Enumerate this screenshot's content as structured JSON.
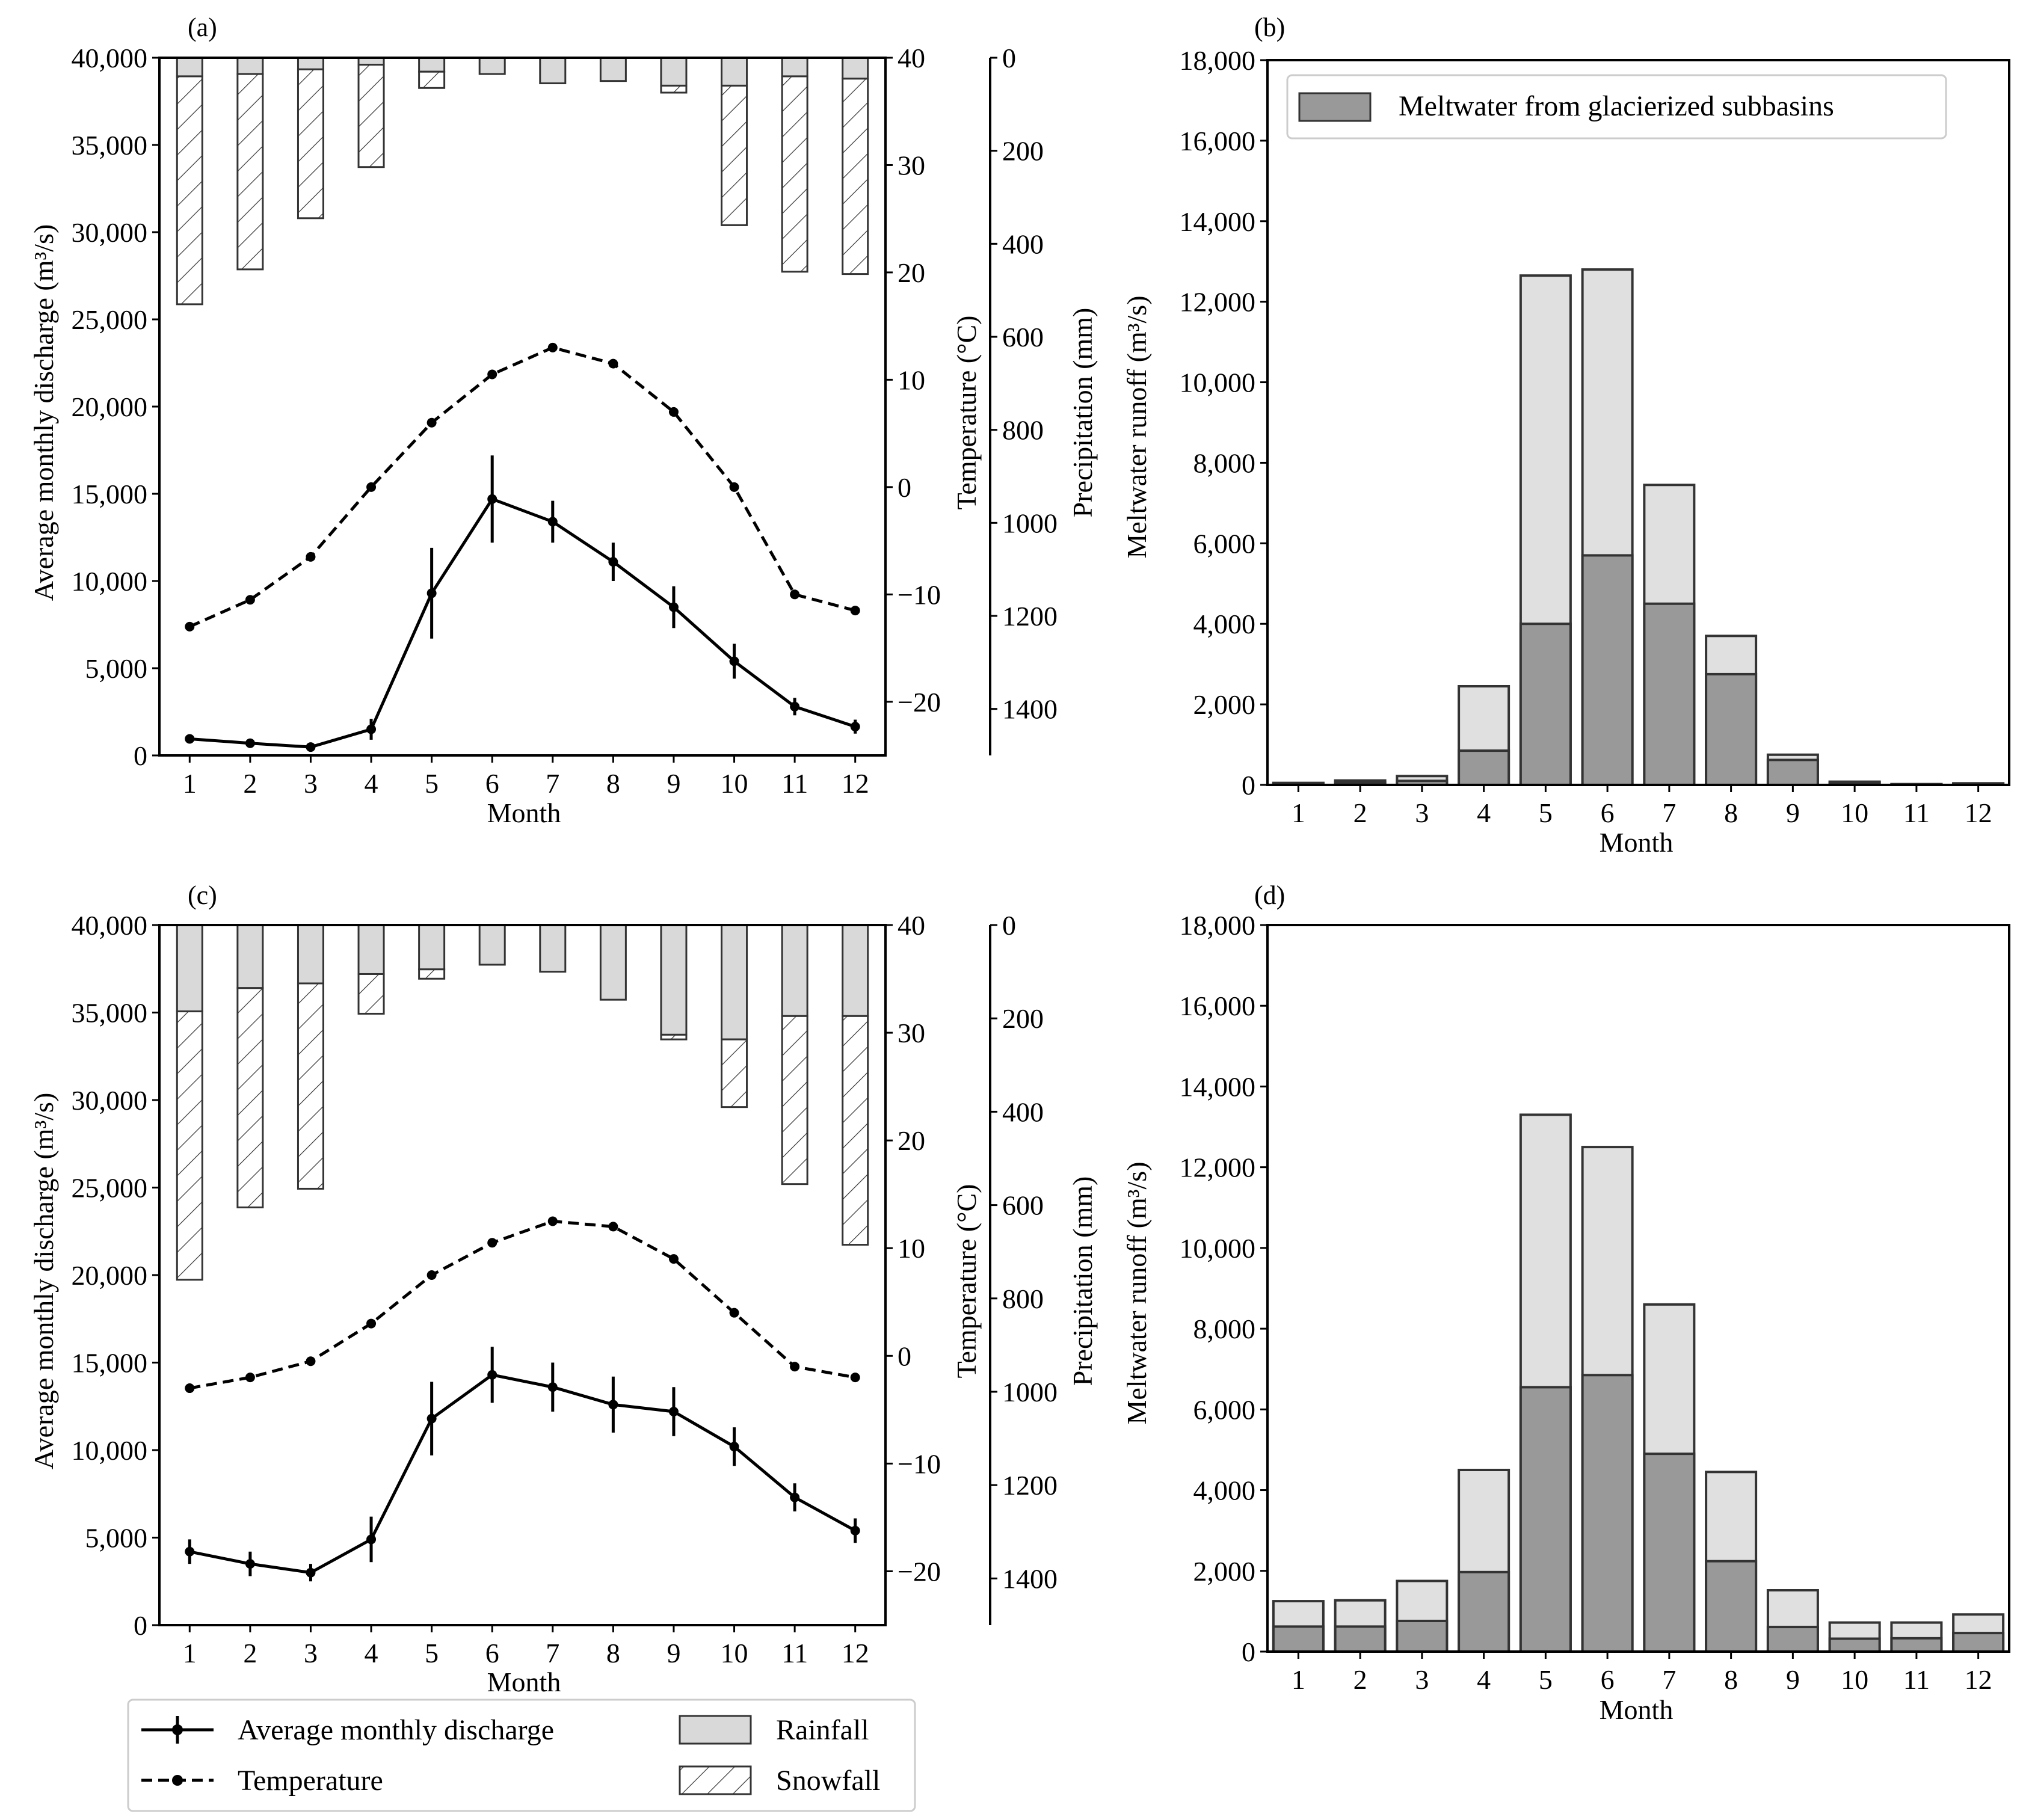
{
  "colors": {
    "rain": "#d9d9d9",
    "melt_total": "#e0e0e0",
    "melt_glacier": "#999999",
    "edge": "#333333",
    "line": "#000000",
    "background": "#ffffff"
  },
  "legend_bottom": {
    "discharge": "Average monthly discharge",
    "temperature": "Temperature",
    "rainfall": "Rainfall",
    "snowfall": "Snowfall"
  },
  "chart_data": [
    {
      "panel": "(a)",
      "type": "bar+line",
      "title": "",
      "xlabel": "Month",
      "ylabel_left": "Average monthly discharge (m³/s)",
      "ylabel_temp": "Temperature (°C)",
      "ylabel_precip": "Precipitation (mm)",
      "categories": [
        "1",
        "2",
        "3",
        "4",
        "5",
        "6",
        "7",
        "8",
        "9",
        "10",
        "11",
        "12"
      ],
      "discharge_ylim": [
        0,
        40000
      ],
      "discharge_ticks": [
        "0",
        "5,000",
        "10,000",
        "15,000",
        "20,000",
        "25,000",
        "30,000",
        "35,000",
        "40,000"
      ],
      "temp_ylim": [
        -25,
        40
      ],
      "temp_ticks": [
        "−20",
        "−10",
        "0",
        "10",
        "20",
        "30",
        "40"
      ],
      "precip_ylim": [
        1500,
        0
      ],
      "precip_ticks": [
        "0",
        "200",
        "400",
        "600",
        "800",
        "1000",
        "1200",
        "1400"
      ],
      "discharge": [
        950,
        700,
        480,
        1500,
        9300,
        14700,
        13400,
        11100,
        8500,
        5400,
        2800,
        1650
      ],
      "discharge_err": [
        0,
        0,
        0,
        600,
        2600,
        2500,
        1200,
        1100,
        1200,
        1000,
        500,
        400
      ],
      "temperature": [
        -13,
        -10.5,
        -6.5,
        0,
        6,
        10.5,
        13,
        11.5,
        7,
        0,
        -10,
        -11.5
      ],
      "rainfall": [
        40,
        35,
        25,
        15,
        30,
        35,
        55,
        50,
        60,
        60,
        40,
        45
      ],
      "snowfall": [
        490,
        420,
        320,
        220,
        35,
        0,
        0,
        0,
        15,
        300,
        420,
        420
      ]
    },
    {
      "panel": "(b)",
      "type": "bar",
      "title": "",
      "xlabel": "Month",
      "ylabel": "Meltwater runoff (m³/s)",
      "categories": [
        "1",
        "2",
        "3",
        "4",
        "5",
        "6",
        "7",
        "8",
        "9",
        "10",
        "11",
        "12"
      ],
      "ylim": [
        0,
        18000
      ],
      "yticks": [
        "0",
        "2,000",
        "4,000",
        "6,000",
        "8,000",
        "10,000",
        "12,000",
        "14,000",
        "16,000",
        "18,000"
      ],
      "legend": "Meltwater from glacierized subbasins",
      "total": [
        50,
        110,
        220,
        2450,
        12650,
        12800,
        7450,
        3700,
        750,
        80,
        20,
        40
      ],
      "glacierized": [
        30,
        60,
        100,
        850,
        4000,
        5700,
        4500,
        2750,
        620,
        50,
        10,
        25
      ]
    },
    {
      "panel": "(c)",
      "type": "bar+line",
      "title": "",
      "xlabel": "Month",
      "ylabel_left": "Average monthly discharge (m³/s)",
      "ylabel_temp": "Temperature (°C)",
      "ylabel_precip": "Precipitation (mm)",
      "categories": [
        "1",
        "2",
        "3",
        "4",
        "5",
        "6",
        "7",
        "8",
        "9",
        "10",
        "11",
        "12"
      ],
      "discharge_ylim": [
        0,
        40000
      ],
      "discharge_ticks": [
        "0",
        "5,000",
        "10,000",
        "15,000",
        "20,000",
        "25,000",
        "30,000",
        "35,000",
        "40,000"
      ],
      "temp_ylim": [
        -25,
        40
      ],
      "temp_ticks": [
        "−20",
        "−10",
        "0",
        "10",
        "20",
        "30",
        "40"
      ],
      "precip_ylim": [
        1500,
        0
      ],
      "precip_ticks": [
        "0",
        "200",
        "400",
        "600",
        "800",
        "1000",
        "1200",
        "1400"
      ],
      "discharge": [
        4200,
        3500,
        3000,
        4900,
        11800,
        14300,
        13600,
        12600,
        12200,
        10200,
        7300,
        5400
      ],
      "discharge_err": [
        700,
        700,
        500,
        1300,
        2100,
        1600,
        1400,
        1600,
        1400,
        1100,
        800,
        700
      ],
      "temperature": [
        -3,
        -2,
        -0.5,
        3,
        7.5,
        10.5,
        12.5,
        12,
        9,
        4,
        -1,
        -2
      ],
      "rainfall": [
        185,
        135,
        125,
        105,
        95,
        85,
        100,
        160,
        235,
        245,
        195,
        195
      ],
      "snowfall": [
        575,
        470,
        440,
        85,
        20,
        0,
        0,
        0,
        10,
        145,
        360,
        490
      ]
    },
    {
      "panel": "(d)",
      "type": "bar",
      "title": "",
      "xlabel": "Month",
      "ylabel": "Meltwater runoff (m³/s)",
      "categories": [
        "1",
        "2",
        "3",
        "4",
        "5",
        "6",
        "7",
        "8",
        "9",
        "10",
        "11",
        "12"
      ],
      "ylim": [
        0,
        18000
      ],
      "yticks": [
        "0",
        "2,000",
        "4,000",
        "6,000",
        "8,000",
        "10,000",
        "12,000",
        "14,000",
        "16,000",
        "18,000"
      ],
      "total": [
        1250,
        1270,
        1750,
        4500,
        13300,
        12500,
        8600,
        4450,
        1520,
        720,
        720,
        920
      ],
      "glacierized": [
        620,
        620,
        760,
        1970,
        6550,
        6850,
        4900,
        2240,
        610,
        320,
        330,
        460
      ]
    }
  ]
}
